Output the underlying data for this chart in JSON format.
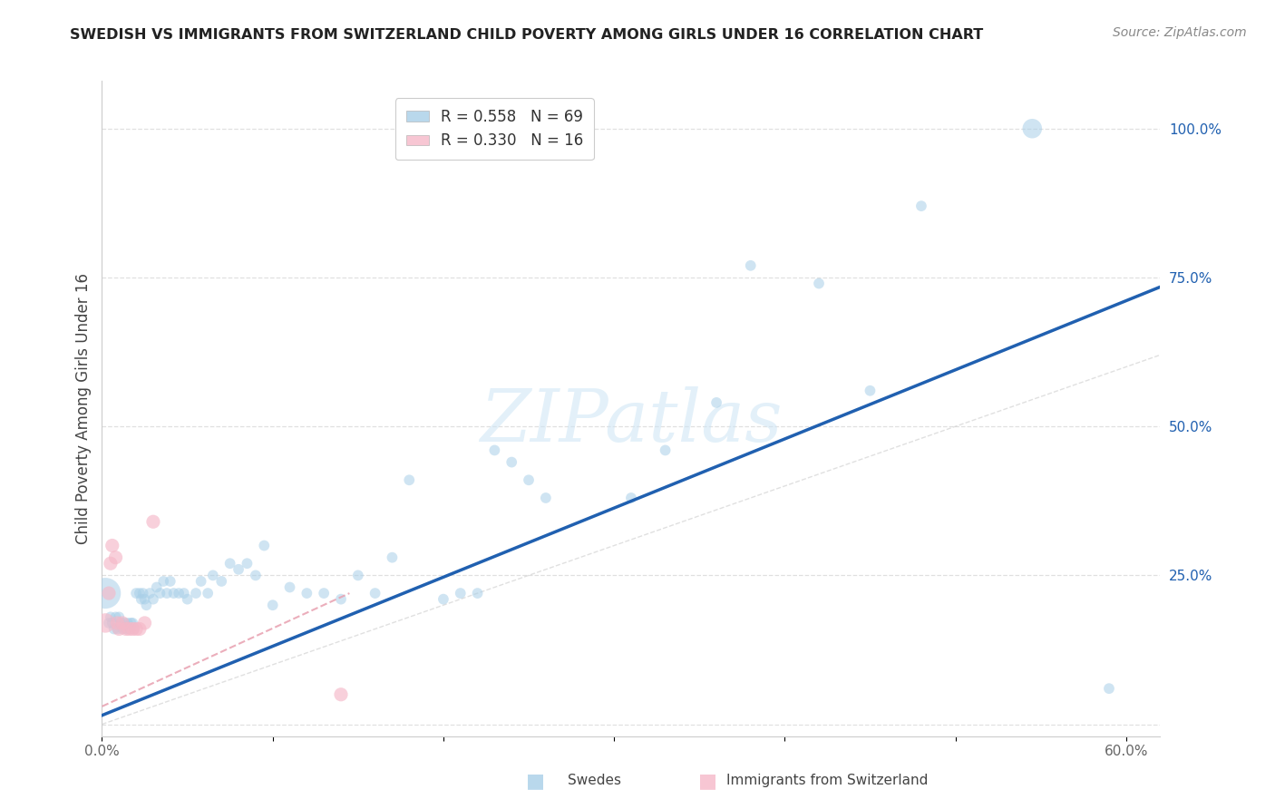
{
  "title": "SWEDISH VS IMMIGRANTS FROM SWITZERLAND CHILD POVERTY AMONG GIRLS UNDER 16 CORRELATION CHART",
  "source": "Source: ZipAtlas.com",
  "ylabel": "Child Poverty Among Girls Under 16",
  "xlim": [
    0.0,
    0.62
  ],
  "ylim": [
    -0.02,
    1.08
  ],
  "ytick_positions": [
    0.0,
    0.25,
    0.5,
    0.75,
    1.0
  ],
  "ytick_labels": [
    "",
    "25.0%",
    "50.0%",
    "75.0%",
    "100.0%"
  ],
  "watermark_text": "ZIPatlas",
  "legend_r1": "R = 0.558",
  "legend_n1": "N = 69",
  "legend_r2": "R = 0.330",
  "legend_n2": "N = 16",
  "blue_line_slope": 1.16,
  "blue_line_intercept": 0.015,
  "pink_line_x0": 0.0,
  "pink_line_x1": 0.145,
  "pink_line_y0": 0.03,
  "pink_line_y1": 0.22,
  "blue_color": "#a8cfe8",
  "blue_line_color": "#2060b0",
  "pink_color": "#f5b8c8",
  "pink_line_color": "#e06080",
  "pink_dashed_color": "#e8a0b0",
  "background_color": "#ffffff",
  "grid_color": "#dddddd",
  "swedes_x": [
    0.002,
    0.004,
    0.005,
    0.006,
    0.007,
    0.008,
    0.009,
    0.01,
    0.011,
    0.012,
    0.013,
    0.014,
    0.015,
    0.016,
    0.017,
    0.018,
    0.019,
    0.02,
    0.022,
    0.023,
    0.024,
    0.025,
    0.026,
    0.028,
    0.03,
    0.032,
    0.034,
    0.036,
    0.038,
    0.04,
    0.042,
    0.045,
    0.048,
    0.05,
    0.055,
    0.058,
    0.062,
    0.065,
    0.07,
    0.075,
    0.08,
    0.085,
    0.09,
    0.095,
    0.1,
    0.11,
    0.12,
    0.13,
    0.14,
    0.15,
    0.16,
    0.17,
    0.18,
    0.2,
    0.21,
    0.22,
    0.23,
    0.24,
    0.25,
    0.26,
    0.31,
    0.33,
    0.36,
    0.38,
    0.42,
    0.45,
    0.48,
    0.545,
    0.59
  ],
  "swedes_y": [
    0.22,
    0.17,
    0.18,
    0.17,
    0.16,
    0.18,
    0.16,
    0.18,
    0.17,
    0.16,
    0.17,
    0.16,
    0.17,
    0.16,
    0.17,
    0.17,
    0.16,
    0.22,
    0.22,
    0.21,
    0.22,
    0.21,
    0.2,
    0.22,
    0.21,
    0.23,
    0.22,
    0.24,
    0.22,
    0.24,
    0.22,
    0.22,
    0.22,
    0.21,
    0.22,
    0.24,
    0.22,
    0.25,
    0.24,
    0.27,
    0.26,
    0.27,
    0.25,
    0.3,
    0.2,
    0.23,
    0.22,
    0.22,
    0.21,
    0.25,
    0.22,
    0.28,
    0.41,
    0.21,
    0.22,
    0.22,
    0.46,
    0.44,
    0.41,
    0.38,
    0.38,
    0.46,
    0.54,
    0.77,
    0.74,
    0.56,
    0.87,
    1.0,
    0.06
  ],
  "swedes_size": [
    500,
    60,
    60,
    60,
    60,
    60,
    60,
    60,
    60,
    60,
    60,
    60,
    60,
    60,
    60,
    60,
    60,
    60,
    60,
    60,
    60,
    60,
    60,
    60,
    60,
    60,
    60,
    60,
    60,
    60,
    60,
    60,
    60,
    60,
    60,
    60,
    60,
    60,
    60,
    60,
    60,
    60,
    60,
    60,
    60,
    60,
    60,
    60,
    60,
    60,
    60,
    60,
    60,
    60,
    60,
    60,
    60,
    60,
    60,
    60,
    60,
    60,
    60,
    60,
    60,
    60,
    60,
    200,
    60
  ],
  "immigrants_x": [
    0.002,
    0.004,
    0.005,
    0.006,
    0.008,
    0.009,
    0.01,
    0.012,
    0.014,
    0.016,
    0.018,
    0.02,
    0.022,
    0.025,
    0.03,
    0.14
  ],
  "immigrants_y": [
    0.17,
    0.22,
    0.27,
    0.3,
    0.28,
    0.17,
    0.16,
    0.17,
    0.16,
    0.16,
    0.16,
    0.16,
    0.16,
    0.17,
    0.34,
    0.05
  ],
  "immigrants_size": [
    200,
    100,
    100,
    100,
    100,
    100,
    100,
    100,
    100,
    100,
    100,
    100,
    100,
    100,
    100,
    100
  ]
}
